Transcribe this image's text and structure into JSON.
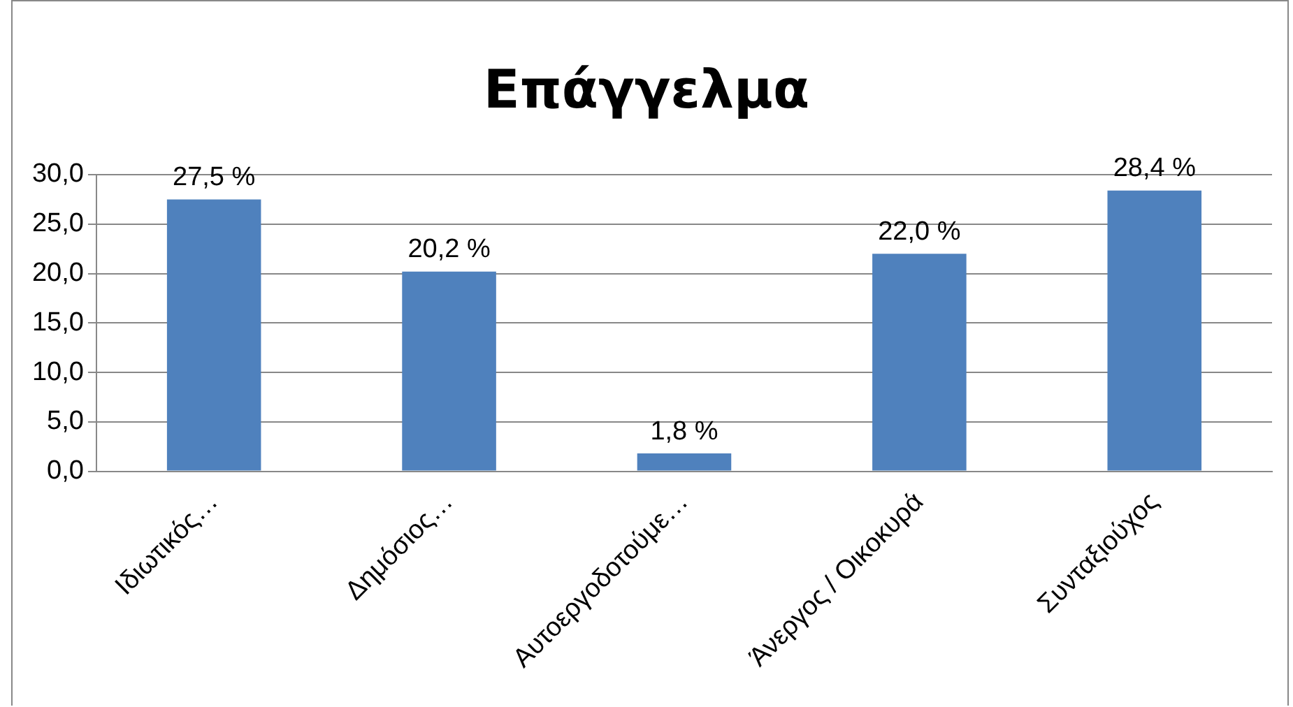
{
  "chart_data": {
    "type": "bar",
    "title": "Επάγγελμα",
    "categories": [
      "Ιδιωτικός…",
      "Δημόσιος…",
      "Αυτοεργοδοτούμε…",
      "Άνεργος / Οικοκυρά",
      "Συνταξιούχος"
    ],
    "values": [
      27.5,
      20.2,
      1.8,
      22.0,
      28.4
    ],
    "value_labels": [
      "27,5 %",
      "20,2 %",
      "1,8 %",
      "22,0 %",
      "28,4 %"
    ],
    "color": "#4f81bd",
    "ylim": [
      0,
      30
    ],
    "yticks": [
      {
        "value": 0,
        "label": "0,0"
      },
      {
        "value": 5,
        "label": "5,0"
      },
      {
        "value": 10,
        "label": "10,0"
      },
      {
        "value": 15,
        "label": "15,0"
      },
      {
        "value": 20,
        "label": "20,0"
      },
      {
        "value": 25,
        "label": "25,0"
      },
      {
        "value": 30,
        "label": "30,0"
      }
    ],
    "grid": "y",
    "legend": false
  }
}
